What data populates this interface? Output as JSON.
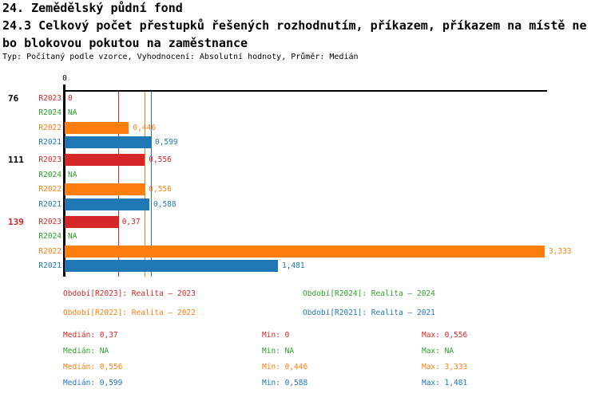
{
  "header": {
    "title_line1": "24. Zemědělský půdní fond",
    "title_line2": "24.3 Celkový počet přestupků řešených rozhodnutím, příkazem, příkazem na místě ne",
    "title_line3": "bo blokovou pokutou na zaměstnance",
    "meta_line": "Typ: Počítaný podle vzorce, Vyhodnocení: Absolutní hodnoty, Průměr: Medián"
  },
  "chart_data": {
    "type": "bar",
    "orientation": "horizontal",
    "title": "24.3 Celkový počet přestupků řešených rozhodnutím, příkazem, příkazem na místě nebo blokovou pokutou na zaměstnance",
    "xlim": [
      0,
      3.35
    ],
    "origin_tick_label": "0",
    "grid": false,
    "axis_color": "#000000",
    "row_order": [
      "R2023",
      "R2024",
      "R2022",
      "R2021"
    ],
    "series_colors": {
      "R2023": "#d62728",
      "R2024": "#2ca02c",
      "R2022": "#ff7f0e",
      "R2021": "#1f77b4"
    },
    "groups": [
      {
        "label": "76",
        "label_color": "#000000",
        "rows": [
          {
            "series": "R2023",
            "value": 0,
            "display": "0"
          },
          {
            "series": "R2024",
            "value": null,
            "display": "NA"
          },
          {
            "series": "R2022",
            "value": 0.446,
            "display": "0,446"
          },
          {
            "series": "R2021",
            "value": 0.599,
            "display": "0,599"
          }
        ]
      },
      {
        "label": "111",
        "label_color": "#000000",
        "rows": [
          {
            "series": "R2023",
            "value": 0.556,
            "display": "0,556"
          },
          {
            "series": "R2024",
            "value": null,
            "display": "NA"
          },
          {
            "series": "R2022",
            "value": 0.556,
            "display": "0,556"
          },
          {
            "series": "R2021",
            "value": 0.588,
            "display": "0,588"
          }
        ]
      },
      {
        "label": "139",
        "label_color": "#d62728",
        "rows": [
          {
            "series": "R2023",
            "value": 0.37,
            "display": "0,37"
          },
          {
            "series": "R2024",
            "value": null,
            "display": "NA"
          },
          {
            "series": "R2022",
            "value": 3.333,
            "display": "3,333"
          },
          {
            "series": "R2021",
            "value": 1.481,
            "display": "1,481"
          }
        ]
      }
    ],
    "median_lines": [
      {
        "series": "R2023",
        "value": 0.37,
        "color": "#d62728"
      },
      {
        "series": "R2022",
        "value": 0.556,
        "color": "#ff7f0e"
      },
      {
        "series": "R2021",
        "value": 0.599,
        "color": "#1f77b4"
      }
    ]
  },
  "legend": {
    "items": [
      {
        "series": "R2023",
        "color": "#d62728",
        "label": "Období[R2023]: Realita – 2023"
      },
      {
        "series": "R2024",
        "color": "#2ca02c",
        "label": "Období[R2024]: Realita – 2024"
      },
      {
        "series": "R2022",
        "color": "#ff7f0e",
        "label": "Období[R2022]: Realita – 2022"
      },
      {
        "series": "R2021",
        "color": "#1f77b4",
        "label": "Období[R2021]: Realita – 2021"
      }
    ]
  },
  "stats": {
    "rows": [
      {
        "series": "R2023",
        "color": "#d62728",
        "median": "Medián: 0,37",
        "min": "Min: 0",
        "max": "Max: 0,556"
      },
      {
        "series": "R2024",
        "color": "#2ca02c",
        "median": "Medián: NA",
        "min": "Min: NA",
        "max": "Max: NA"
      },
      {
        "series": "R2022",
        "color": "#ff7f0e",
        "median": "Medián: 0,556",
        "min": "Min: 0,446",
        "max": "Max: 3,333"
      },
      {
        "series": "R2021",
        "color": "#1f77b4",
        "median": "Medián: 0,599",
        "min": "Min: 0,588",
        "max": "Max: 1,481"
      }
    ]
  }
}
